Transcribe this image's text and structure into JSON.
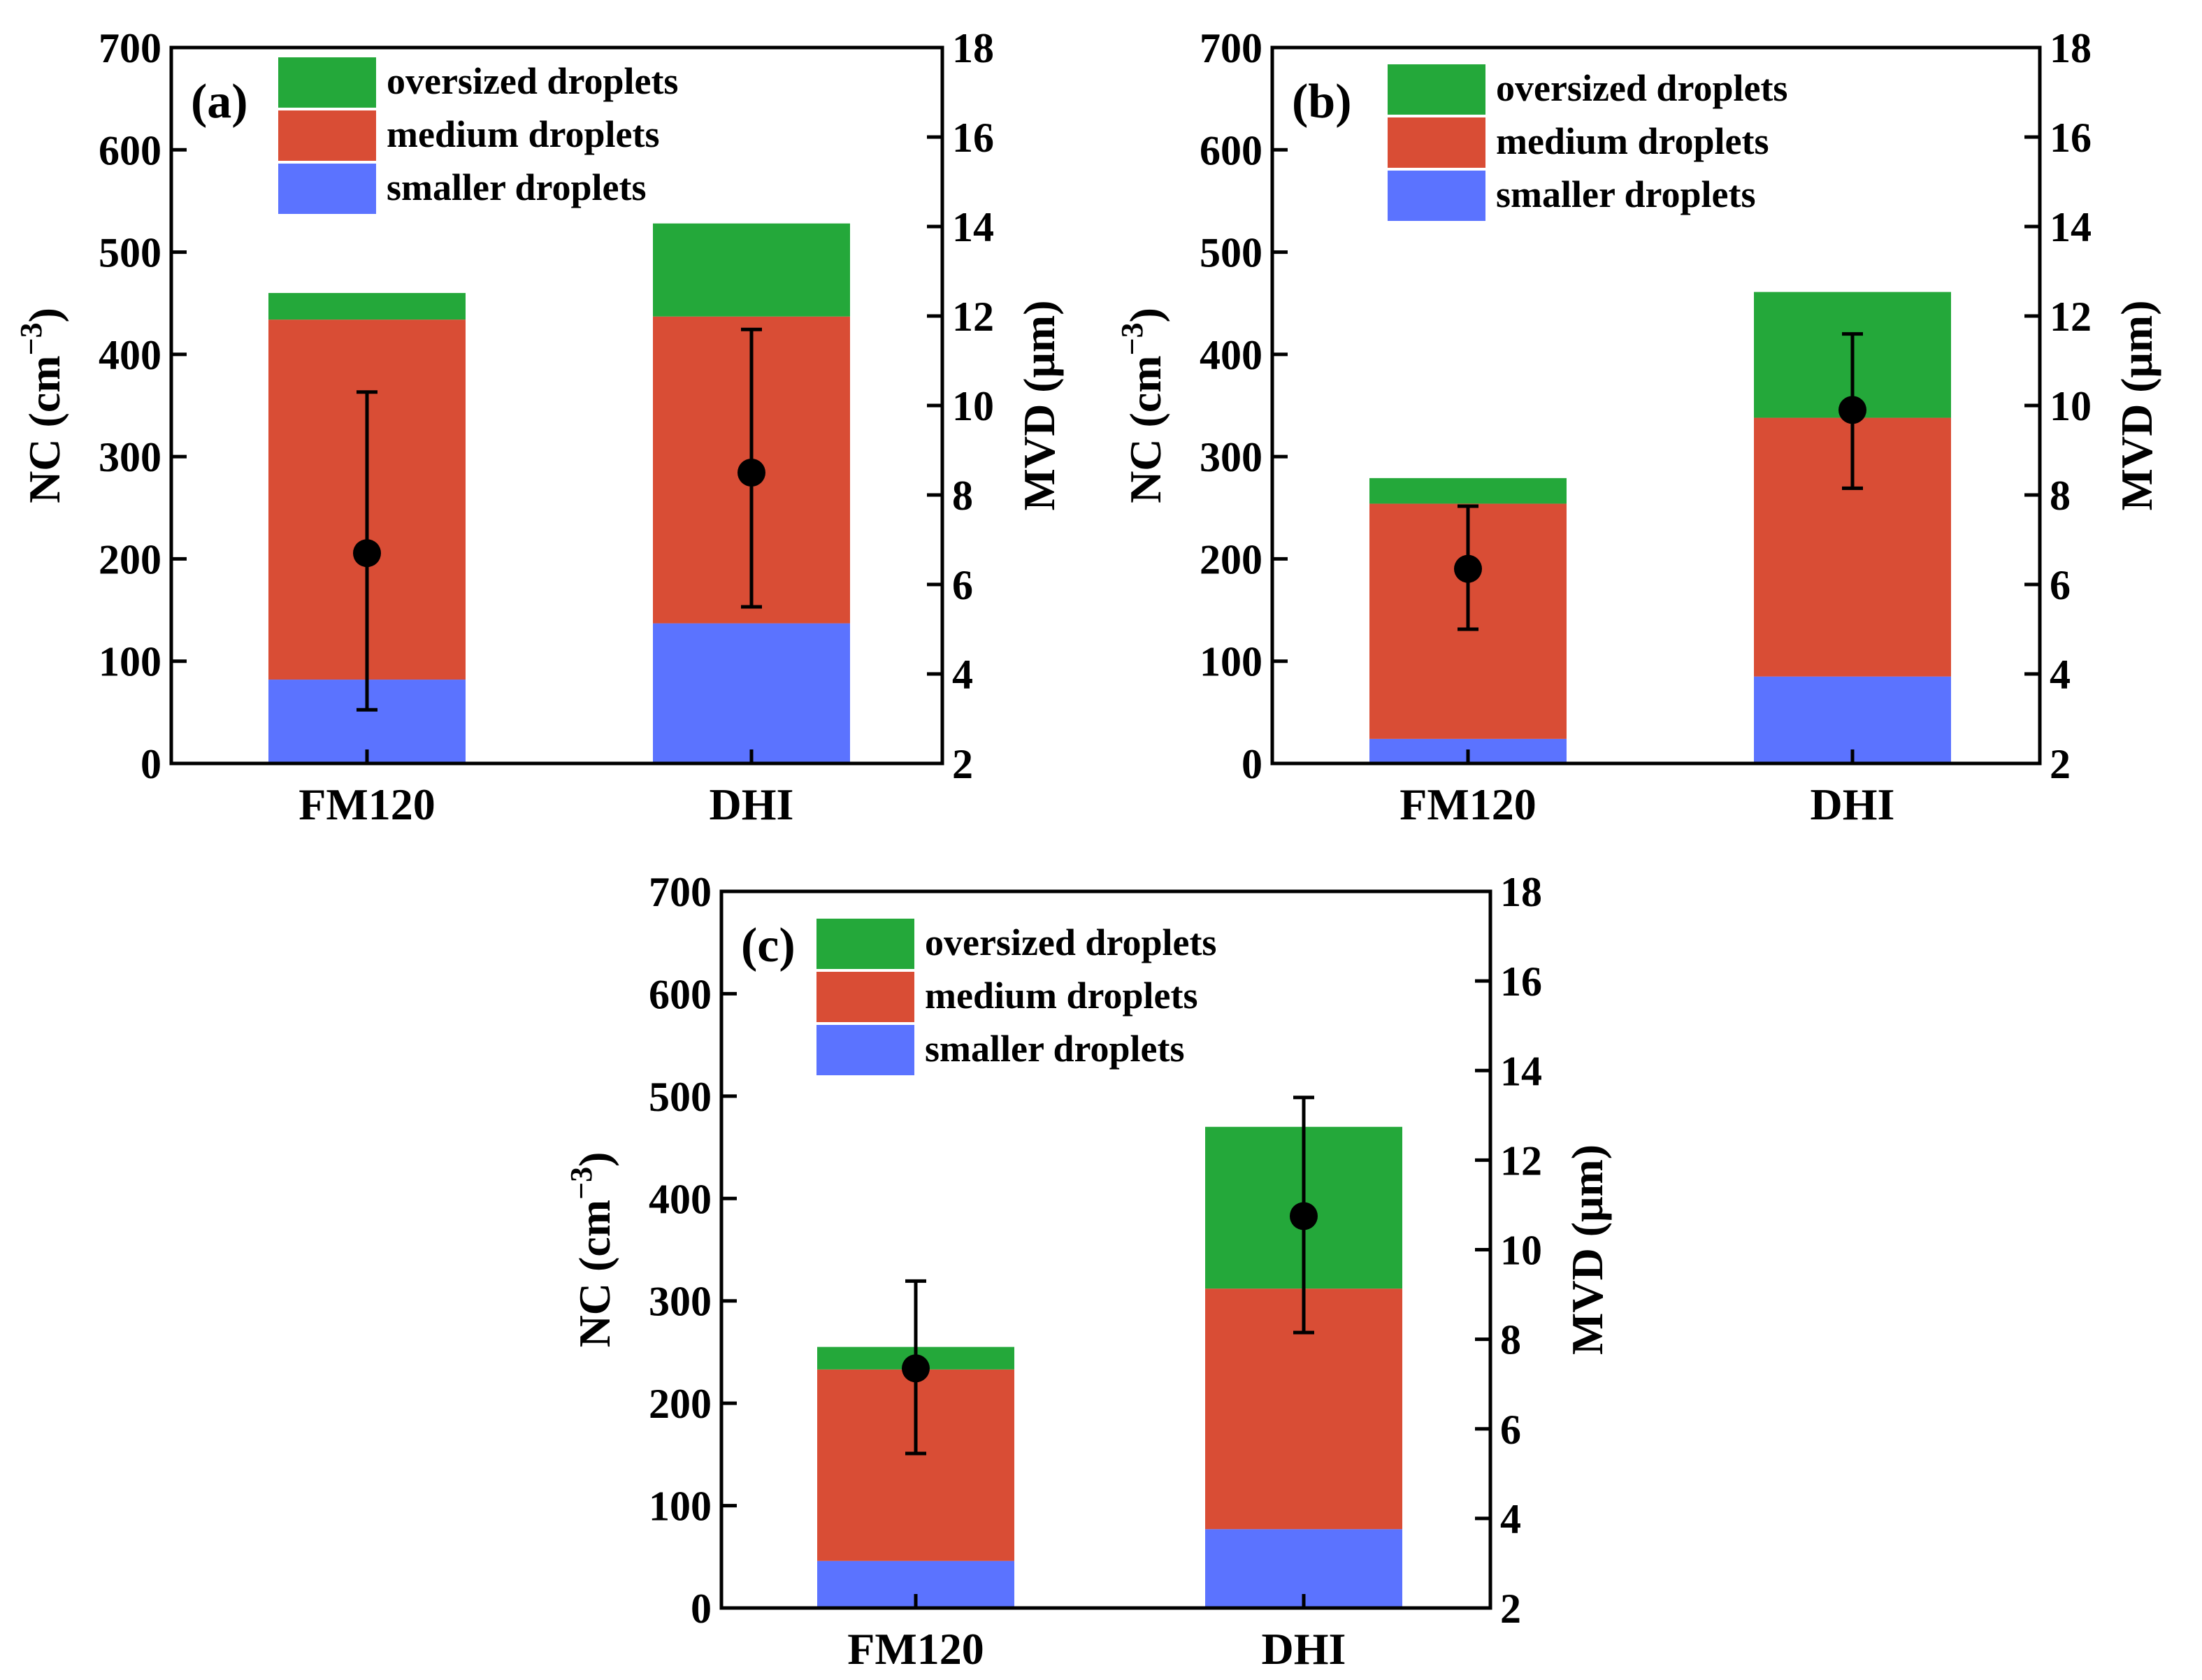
{
  "chart_data": [
    {
      "type": "bar",
      "stacked": true,
      "panel_label": "(a)",
      "categories": [
        "FM120",
        "DHI"
      ],
      "series": [
        {
          "name": "smaller droplets",
          "values": [
            82,
            137
          ],
          "color": "#5b73ff"
        },
        {
          "name": "medium droplets",
          "values": [
            352,
            300
          ],
          "color": "#d94d35"
        },
        {
          "name": "oversized droplets",
          "values": [
            26,
            91
          ],
          "color": "#24a83a"
        }
      ],
      "secondary_series": {
        "name": "MVD",
        "values": [
          6.7,
          8.5
        ],
        "err_low": [
          3.2,
          5.5
        ],
        "err_high": [
          10.3,
          11.7
        ]
      },
      "ylabel": "NC",
      "ylabel_unit_exp": "−3",
      "y2label": "MVD (μm)",
      "ylim": [
        0,
        700
      ],
      "y2lim": [
        2,
        18
      ],
      "yticks": [
        "0",
        "100",
        "200",
        "300",
        "400",
        "500",
        "600",
        "700"
      ],
      "y2ticks": [
        "2",
        "4",
        "6",
        "8",
        "10",
        "12",
        "14",
        "16",
        "18"
      ],
      "legend_position": "top-left"
    },
    {
      "type": "bar",
      "stacked": true,
      "panel_label": "(b)",
      "categories": [
        "FM120",
        "DHI"
      ],
      "series": [
        {
          "name": "smaller droplets",
          "values": [
            24,
            85
          ],
          "color": "#5b73ff"
        },
        {
          "name": "medium droplets",
          "values": [
            230,
            253
          ],
          "color": "#d94d35"
        },
        {
          "name": "oversized droplets",
          "values": [
            25,
            123
          ],
          "color": "#24a83a"
        }
      ],
      "secondary_series": {
        "name": "MVD",
        "values": [
          6.35,
          9.9
        ],
        "err_low": [
          5.0,
          8.15
        ],
        "err_high": [
          7.75,
          11.6
        ]
      },
      "ylabel": "NC",
      "ylabel_unit_exp": "−3",
      "y2label": "MVD (μm)",
      "ylim": [
        0,
        700
      ],
      "y2lim": [
        2,
        18
      ],
      "yticks": [
        "0",
        "100",
        "200",
        "300",
        "400",
        "500",
        "600",
        "700"
      ],
      "y2ticks": [
        "2",
        "4",
        "6",
        "8",
        "10",
        "12",
        "14",
        "16",
        "18"
      ],
      "legend_position": "top-left"
    },
    {
      "type": "bar",
      "stacked": true,
      "panel_label": "(c)",
      "categories": [
        "FM120",
        "DHI"
      ],
      "series": [
        {
          "name": "smaller droplets",
          "values": [
            46,
            77
          ],
          "color": "#5b73ff"
        },
        {
          "name": "medium droplets",
          "values": [
            187,
            235
          ],
          "color": "#d94d35"
        },
        {
          "name": "oversized droplets",
          "values": [
            22,
            158
          ],
          "color": "#24a83a"
        }
      ],
      "secondary_series": {
        "name": "MVD",
        "values": [
          7.35,
          10.75
        ],
        "err_low": [
          5.45,
          8.15
        ],
        "err_high": [
          9.3,
          13.4
        ]
      },
      "ylabel": "NC",
      "ylabel_unit_exp": "−3",
      "y2label": "MVD (μm)",
      "ylim": [
        0,
        700
      ],
      "y2lim": [
        2,
        18
      ],
      "yticks": [
        "0",
        "100",
        "200",
        "300",
        "400",
        "500",
        "600",
        "700"
      ],
      "y2ticks": [
        "2",
        "4",
        "6",
        "8",
        "10",
        "12",
        "14",
        "16",
        "18"
      ],
      "legend_position": "top-left"
    }
  ]
}
